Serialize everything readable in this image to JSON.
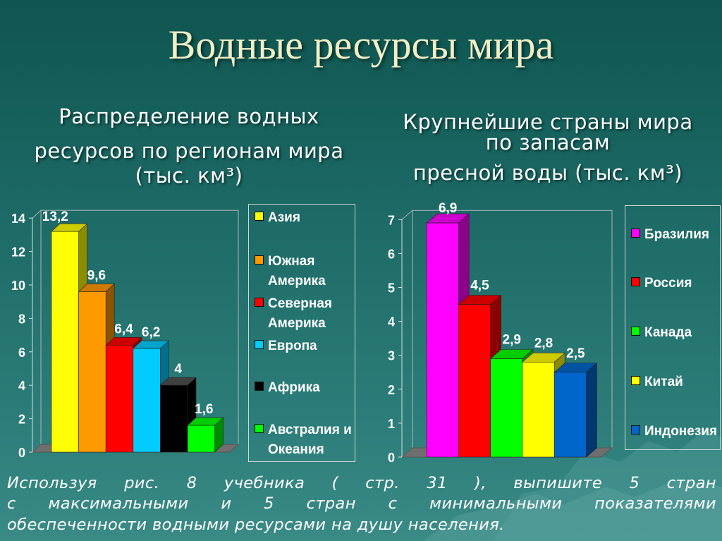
{
  "title": "Водные ресурсы мира",
  "left_subtitle": [
    "Распределение водных",
    "ресурсов по регионам мира",
    "(тыс. км³)"
  ],
  "right_subtitle": [
    "Крупнейшие страны мира",
    "по запасам",
    "пресной воды (тыс. км³)"
  ],
  "footnote": [
    "Используя рис. 8 учебника ( стр. 31 ), выпишите 5 стран",
    "с максимальными и 5 стран с минимальными показателями",
    "обеспеченности водными ресурсами на душу населения."
  ],
  "chart_data": [
    {
      "type": "bar",
      "categories": [
        "Азия",
        "Южная Америка",
        "Северная Америка",
        "Европа",
        "Африка",
        "Австралия и Океания"
      ],
      "legend_lines": [
        [
          "Азия"
        ],
        [
          "Южная",
          "Америка"
        ],
        [
          "Северная",
          "Америка"
        ],
        [
          "Европа"
        ],
        [
          "Африка"
        ],
        [
          "Австралия и",
          "Океания"
        ]
      ],
      "values": [
        13.2,
        9.6,
        6.4,
        6.2,
        4,
        1.6
      ],
      "data_labels": [
        "13,2",
        "9,6",
        "6,4",
        "6,2",
        "4",
        "1,6"
      ],
      "colors": [
        "#ffff00",
        "#ff9900",
        "#ff0000",
        "#00ccff",
        "#000000",
        "#00ff00"
      ],
      "yticks": [
        "0",
        "2",
        "4",
        "6",
        "8",
        "10",
        "12",
        "14"
      ],
      "ylim": [
        0,
        14
      ],
      "legend_position": "right",
      "grid": false
    },
    {
      "type": "bar",
      "categories": [
        "Бразилия",
        "Россия",
        "Канада",
        "Китай",
        "Индонезия"
      ],
      "legend_lines": [
        [
          "Бразилия"
        ],
        [
          "Россия"
        ],
        [
          "Канада"
        ],
        [
          "Китай"
        ],
        [
          "Индонезия"
        ]
      ],
      "values": [
        6.9,
        4.5,
        2.9,
        2.8,
        2.5
      ],
      "data_labels": [
        "6,9",
        "4,5",
        "2,9",
        "2,8",
        "2,5"
      ],
      "colors": [
        "#ff00ff",
        "#ff0000",
        "#00ff00",
        "#ffff00",
        "#0066cc"
      ],
      "yticks": [
        "0",
        "1",
        "2",
        "3",
        "4",
        "5",
        "6",
        "7"
      ],
      "ylim": [
        0,
        7
      ],
      "legend_position": "right",
      "grid": false
    }
  ]
}
